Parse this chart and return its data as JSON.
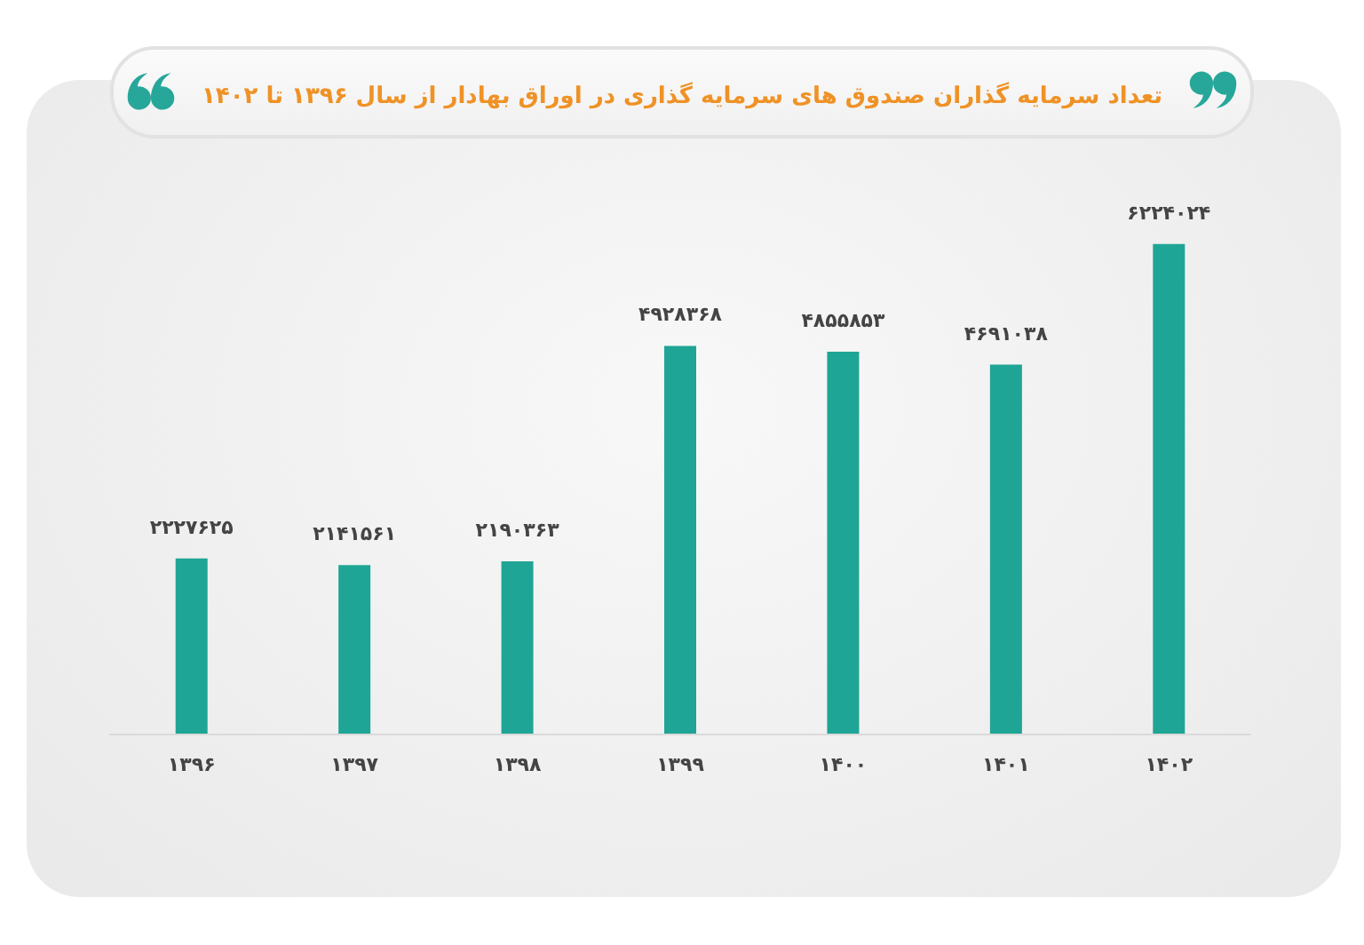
{
  "chart_data": {
    "type": "bar",
    "title": "تعداد سرمایه گذاران صندوق های سرمایه گذاری در اوراق بهادار از سال ۱۳۹۶ تا ۱۴۰۲",
    "categories": [
      "۱۳۹۶",
      "۱۳۹۷",
      "۱۳۹۸",
      "۱۳۹۹",
      "۱۴۰۰",
      "۱۴۰۱",
      "۱۴۰۲"
    ],
    "values": [
      2227625,
      2141561,
      2190363,
      4928368,
      4855853,
      4691038,
      6224024
    ],
    "value_labels": [
      "۲۲۲۷۶۲۵",
      "۲۱۴۱۵۶۱",
      "۲۱۹۰۳۶۳",
      "۴۹۲۸۳۶۸",
      "۴۸۵۵۸۵۳",
      "۴۶۹۱۰۳۸",
      "۶۲۲۴۰۲۴"
    ],
    "color": "#1fa595"
  }
}
